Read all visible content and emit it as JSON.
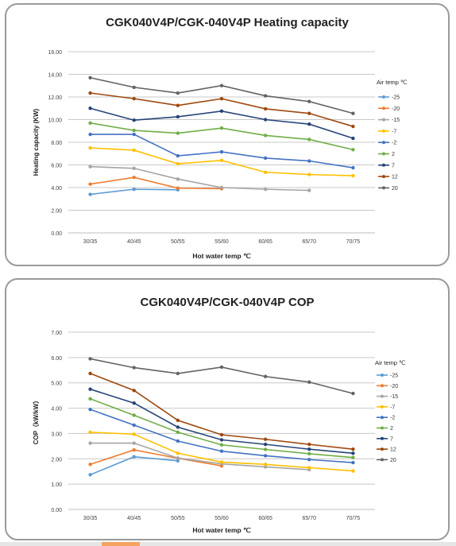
{
  "charts": [
    {
      "title": "CGK040V4P/CGK-040V4P Heating capacity",
      "ylabel": "Heating capacity (KW)",
      "xlabel": "Hot water temp ℃",
      "legend_title": "Air temp ℃",
      "y_ticks": [
        "0.00",
        "2.00",
        "4.00",
        "6.00",
        "8.00",
        "10.00",
        "12.00",
        "14.00",
        "16.00"
      ],
      "categories": [
        "30/35",
        "40/45",
        "50/55",
        "55/60",
        "60/65",
        "65/70",
        "70/75"
      ]
    },
    {
      "title": "CGK040V4P/CGK-040V4P COP",
      "ylabel": "COP（kW/kW）",
      "xlabel": "Hot water temp ℃",
      "legend_title": "Air temp ℃",
      "y_ticks": [
        "0.00",
        "1.00",
        "2.00",
        "3.00",
        "4.00",
        "5.00",
        "6.00",
        "7.00"
      ],
      "categories": [
        "30/35",
        "40/45",
        "50/55",
        "55/60",
        "60/65",
        "65/70",
        "70/75"
      ]
    }
  ],
  "chart_data": [
    {
      "type": "line",
      "title": "CGK040V4P/CGK-040V4P Heating capacity",
      "xlabel": "Hot water temp ℃",
      "ylabel": "Heating capacity (KW)",
      "ylim": [
        0,
        16
      ],
      "grid": true,
      "legend_placement": "right",
      "categories": [
        "30/35",
        "40/45",
        "50/55",
        "55/60",
        "60/65",
        "65/70",
        "70/75"
      ],
      "series": [
        {
          "name": "-25",
          "color": "#5b9bd5",
          "values": [
            3.4,
            3.85,
            3.8,
            null,
            null,
            null,
            null
          ]
        },
        {
          "name": "-20",
          "color": "#ed7d31",
          "values": [
            4.3,
            4.9,
            3.95,
            3.9,
            null,
            null,
            null
          ]
        },
        {
          "name": "-15",
          "color": "#a5a5a5",
          "values": [
            5.85,
            5.7,
            4.75,
            4.0,
            3.85,
            3.75,
            null
          ]
        },
        {
          "name": "-7",
          "color": "#ffc000",
          "values": [
            7.5,
            7.3,
            6.1,
            6.4,
            5.35,
            5.15,
            5.05
          ]
        },
        {
          "name": "-2",
          "color": "#4472c4",
          "values": [
            8.7,
            8.7,
            6.8,
            7.15,
            6.6,
            6.35,
            5.75
          ]
        },
        {
          "name": "2",
          "color": "#70ad47",
          "values": [
            9.7,
            9.05,
            8.8,
            9.25,
            8.6,
            8.25,
            7.35
          ]
        },
        {
          "name": "7",
          "color": "#264478",
          "values": [
            11.0,
            9.95,
            10.25,
            10.75,
            10.0,
            9.6,
            8.35
          ]
        },
        {
          "name": "12",
          "color": "#9e480e",
          "values": [
            12.35,
            11.85,
            11.25,
            11.85,
            10.95,
            10.55,
            9.4
          ]
        },
        {
          "name": "20",
          "color": "#636363",
          "values": [
            13.7,
            12.85,
            12.35,
            13.0,
            12.1,
            11.6,
            10.55
          ]
        }
      ]
    },
    {
      "type": "line",
      "title": "CGK040V4P/CGK-040V4P COP",
      "xlabel": "Hot water temp ℃",
      "ylabel": "COP（kW/kW）",
      "ylim": [
        0,
        7
      ],
      "grid": true,
      "legend_placement": "right",
      "categories": [
        "30/35",
        "40/45",
        "50/55",
        "55/60",
        "60/65",
        "65/70",
        "70/75"
      ],
      "series": [
        {
          "name": "-25",
          "color": "#5b9bd5",
          "values": [
            1.37,
            2.08,
            1.92,
            null,
            null,
            null,
            null
          ]
        },
        {
          "name": "-20",
          "color": "#ed7d31",
          "values": [
            1.78,
            2.35,
            2.02,
            1.72,
            null,
            null,
            null
          ]
        },
        {
          "name": "-15",
          "color": "#a5a5a5",
          "values": [
            2.62,
            2.62,
            2.03,
            1.8,
            1.68,
            1.57,
            null
          ]
        },
        {
          "name": "-7",
          "color": "#ffc000",
          "values": [
            3.05,
            2.97,
            2.22,
            1.87,
            1.78,
            1.65,
            1.52
          ]
        },
        {
          "name": "-2",
          "color": "#4472c4",
          "values": [
            3.95,
            3.33,
            2.7,
            2.3,
            2.12,
            1.97,
            1.85
          ]
        },
        {
          "name": "2",
          "color": "#70ad47",
          "values": [
            4.37,
            3.72,
            3.05,
            2.55,
            2.37,
            2.2,
            2.05
          ]
        },
        {
          "name": "7",
          "color": "#264478",
          "values": [
            4.75,
            4.2,
            3.25,
            2.75,
            2.57,
            2.38,
            2.22
          ]
        },
        {
          "name": "12",
          "color": "#9e480e",
          "values": [
            5.37,
            4.7,
            3.52,
            2.95,
            2.77,
            2.57,
            2.38
          ]
        },
        {
          "name": "20",
          "color": "#636363",
          "values": [
            5.95,
            5.6,
            5.37,
            5.62,
            5.25,
            5.03,
            4.58
          ]
        }
      ]
    }
  ]
}
